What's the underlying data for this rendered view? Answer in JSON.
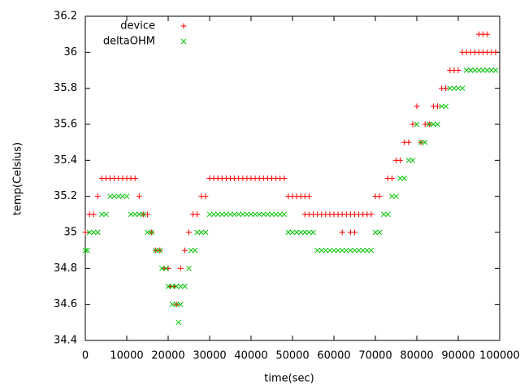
{
  "chart_data": {
    "type": "scatter",
    "xlabel": "time(sec)",
    "ylabel": "temp(Celsius)",
    "xlim": [
      0,
      100000
    ],
    "xticks": [
      0,
      10000,
      20000,
      30000,
      40000,
      50000,
      60000,
      70000,
      80000,
      90000,
      100000
    ],
    "ylim": [
      34.4,
      36.2
    ],
    "yticks": [
      34.4,
      34.6,
      34.8,
      35,
      35.2,
      35.4,
      35.6,
      35.8,
      36,
      36.2
    ],
    "grid": false,
    "legend": "top left",
    "series": [
      {
        "name": "device",
        "color": "#ff0000",
        "marker": "plus",
        "x": [
          0,
          1000,
          2000,
          3000,
          4000,
          5000,
          6000,
          7000,
          8000,
          9000,
          10000,
          11000,
          12000,
          13000,
          14000,
          15000,
          16000,
          17000,
          18000,
          19000,
          20000,
          20500,
          21500,
          22000,
          23000,
          24000,
          25000,
          26000,
          27000,
          28000,
          29000,
          30000,
          31000,
          32000,
          33000,
          34000,
          35000,
          36000,
          37000,
          38000,
          39000,
          40000,
          41000,
          42000,
          43000,
          44000,
          45000,
          46000,
          47000,
          48000,
          49000,
          50000,
          51000,
          52000,
          53000,
          54000,
          53000,
          54000,
          55000,
          56000,
          57000,
          58000,
          59000,
          60000,
          61000,
          62000,
          63000,
          64000,
          65000,
          66000,
          67000,
          68000,
          69000,
          62000,
          64000,
          65000,
          70000,
          71000,
          73000,
          74000,
          75000,
          76000,
          77000,
          78000,
          79000,
          80000,
          81000,
          82000,
          83000,
          84000,
          85000,
          86000,
          87000,
          88000,
          89000,
          90000,
          91000,
          92000,
          93000,
          94000,
          95000,
          96000,
          97000,
          98000,
          99000,
          95000,
          96000,
          97000
        ],
        "values": [
          35,
          35.1,
          35.1,
          35.2,
          35.3,
          35.3,
          35.3,
          35.3,
          35.3,
          35.3,
          35.3,
          35.3,
          35.3,
          35.2,
          35.1,
          35.1,
          35,
          34.9,
          34.9,
          34.8,
          34.8,
          34.7,
          34.7,
          34.6,
          34.8,
          34.9,
          35,
          35.1,
          35.1,
          35.2,
          35.2,
          35.3,
          35.3,
          35.3,
          35.3,
          35.3,
          35.3,
          35.3,
          35.3,
          35.3,
          35.3,
          35.3,
          35.3,
          35.3,
          35.3,
          35.3,
          35.3,
          35.3,
          35.3,
          35.3,
          35.2,
          35.2,
          35.2,
          35.2,
          35.2,
          35.2,
          35.1,
          35.1,
          35.1,
          35.1,
          35.1,
          35.1,
          35.1,
          35.1,
          35.1,
          35.1,
          35.1,
          35.1,
          35.1,
          35.1,
          35.1,
          35.1,
          35.1,
          35,
          35,
          35,
          35.2,
          35.2,
          35.3,
          35.3,
          35.4,
          35.4,
          35.5,
          35.5,
          35.6,
          35.7,
          35.5,
          35.6,
          35.6,
          35.7,
          35.7,
          35.8,
          35.8,
          35.9,
          35.9,
          35.9,
          36,
          36,
          36,
          36,
          36,
          36,
          36,
          36,
          36,
          36.1,
          36.1,
          36.1
        ]
      },
      {
        "name": "deltaOHM",
        "color": "#00c000",
        "marker": "cross",
        "x": [
          0,
          500,
          1000,
          2000,
          3000,
          4000,
          5000,
          6000,
          7000,
          8000,
          9000,
          10000,
          11000,
          12000,
          13000,
          14000,
          15000,
          16000,
          17000,
          18000,
          18500,
          19500,
          20000,
          21000,
          22000,
          23000,
          24000,
          21000,
          22000,
          23000,
          22500,
          25000,
          25500,
          26500,
          27000,
          28000,
          29000,
          30000,
          31000,
          32000,
          33000,
          34000,
          35000,
          36000,
          37000,
          38000,
          39000,
          40000,
          41000,
          42000,
          43000,
          44000,
          45000,
          46000,
          47000,
          48000,
          49000,
          50000,
          51000,
          52000,
          53000,
          54000,
          55000,
          56000,
          57000,
          58000,
          59000,
          60000,
          61000,
          62000,
          63000,
          64000,
          65000,
          66000,
          67000,
          68000,
          69000,
          70000,
          71000,
          72000,
          73000,
          74000,
          75000,
          76000,
          77000,
          78000,
          79000,
          80000,
          81000,
          82000,
          83000,
          84000,
          85000,
          86000,
          87000,
          88000,
          89000,
          90000,
          91000,
          92000,
          93000,
          94000,
          95000,
          96000,
          97000,
          98000,
          99000
        ],
        "values": [
          34.9,
          34.9,
          35,
          35,
          35,
          35.1,
          35.1,
          35.2,
          35.2,
          35.2,
          35.2,
          35.2,
          35.1,
          35.1,
          35.1,
          35.1,
          35,
          35,
          34.9,
          34.9,
          34.8,
          34.8,
          34.7,
          34.7,
          34.7,
          34.7,
          34.7,
          34.6,
          34.6,
          34.6,
          34.5,
          34.8,
          34.9,
          34.9,
          35,
          35,
          35,
          35.1,
          35.1,
          35.1,
          35.1,
          35.1,
          35.1,
          35.1,
          35.1,
          35.1,
          35.1,
          35.1,
          35.1,
          35.1,
          35.1,
          35.1,
          35.1,
          35.1,
          35.1,
          35.1,
          35,
          35,
          35,
          35,
          35,
          35,
          35,
          34.9,
          34.9,
          34.9,
          34.9,
          34.9,
          34.9,
          34.9,
          34.9,
          34.9,
          34.9,
          34.9,
          34.9,
          34.9,
          34.9,
          35,
          35,
          35.1,
          35.1,
          35.2,
          35.2,
          35.3,
          35.3,
          35.4,
          35.4,
          35.6,
          35.5,
          35.5,
          35.6,
          35.6,
          35.6,
          35.7,
          35.7,
          35.8,
          35.8,
          35.8,
          35.8,
          35.9,
          35.9,
          35.9,
          35.9,
          35.9,
          35.9,
          35.9,
          35.9
        ]
      }
    ]
  }
}
